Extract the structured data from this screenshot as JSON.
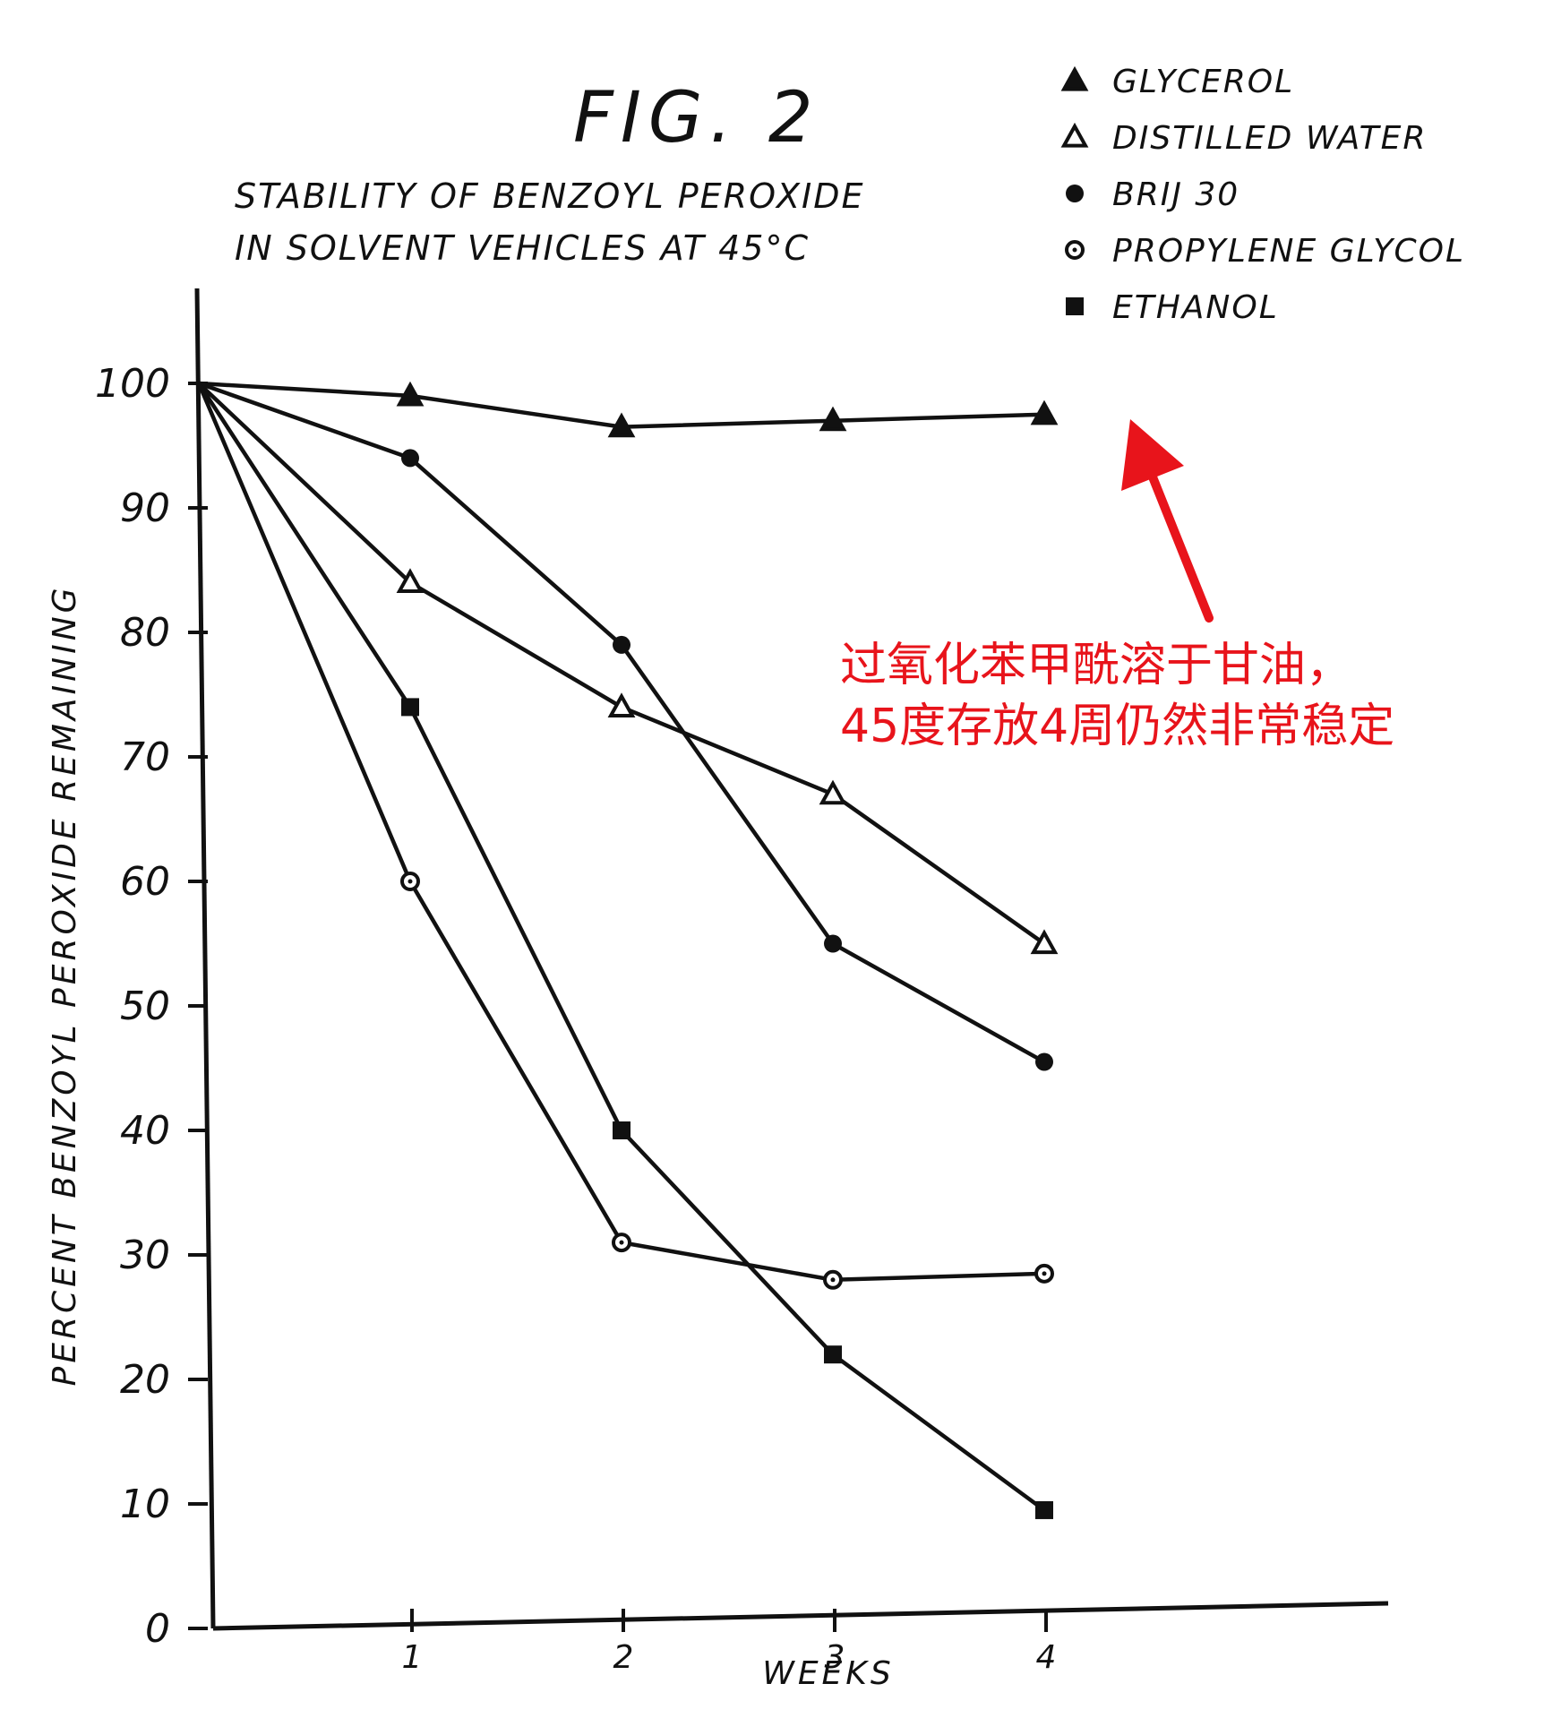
{
  "chart_data": {
    "type": "line",
    "figure_label": "FIG. 2",
    "title_lines": [
      "STABILITY OF BENZOYL PEROXIDE",
      "IN SOLVENT VEHICLES AT 45°C"
    ],
    "xlabel": "WEEKS",
    "ylabel": "PERCENT BENZOYL PEROXIDE REMAINING",
    "xlim": [
      0,
      4.3
    ],
    "ylim": [
      0,
      100
    ],
    "x_ticks": [
      1,
      2,
      3,
      4
    ],
    "y_ticks": [
      0,
      10,
      20,
      30,
      40,
      50,
      60,
      70,
      80,
      90,
      100
    ],
    "legend_position": "top-right",
    "grid": false,
    "series": [
      {
        "name": "GLYCEROL",
        "marker": "filled-triangle",
        "x": [
          0,
          1,
          2,
          3,
          4
        ],
        "y": [
          100,
          99,
          96.5,
          97,
          97.5
        ]
      },
      {
        "name": "DISTILLED WATER",
        "marker": "open-triangle",
        "x": [
          0,
          1,
          2,
          3,
          4
        ],
        "y": [
          100,
          84,
          74,
          67,
          55
        ]
      },
      {
        "name": "BRIJ 30",
        "marker": "filled-circle",
        "x": [
          0,
          1,
          2,
          3,
          4
        ],
        "y": [
          100,
          94,
          79,
          55,
          45.5
        ]
      },
      {
        "name": "PROPYLENE GLYCOL",
        "marker": "open-circle",
        "x": [
          0,
          1,
          2,
          3,
          4
        ],
        "y": [
          100,
          60,
          31,
          28,
          28.5
        ]
      },
      {
        "name": "ETHANOL",
        "marker": "filled-square",
        "x": [
          0,
          1,
          2,
          3,
          4
        ],
        "y": [
          100,
          74,
          40,
          22,
          9.5
        ]
      }
    ],
    "annotation": {
      "lines": [
        "过氧化苯甲酰溶于甘油，",
        "45度存放4周仍然非常稳定"
      ],
      "color": "#e8141b",
      "points_to_series": "GLYCEROL"
    }
  }
}
